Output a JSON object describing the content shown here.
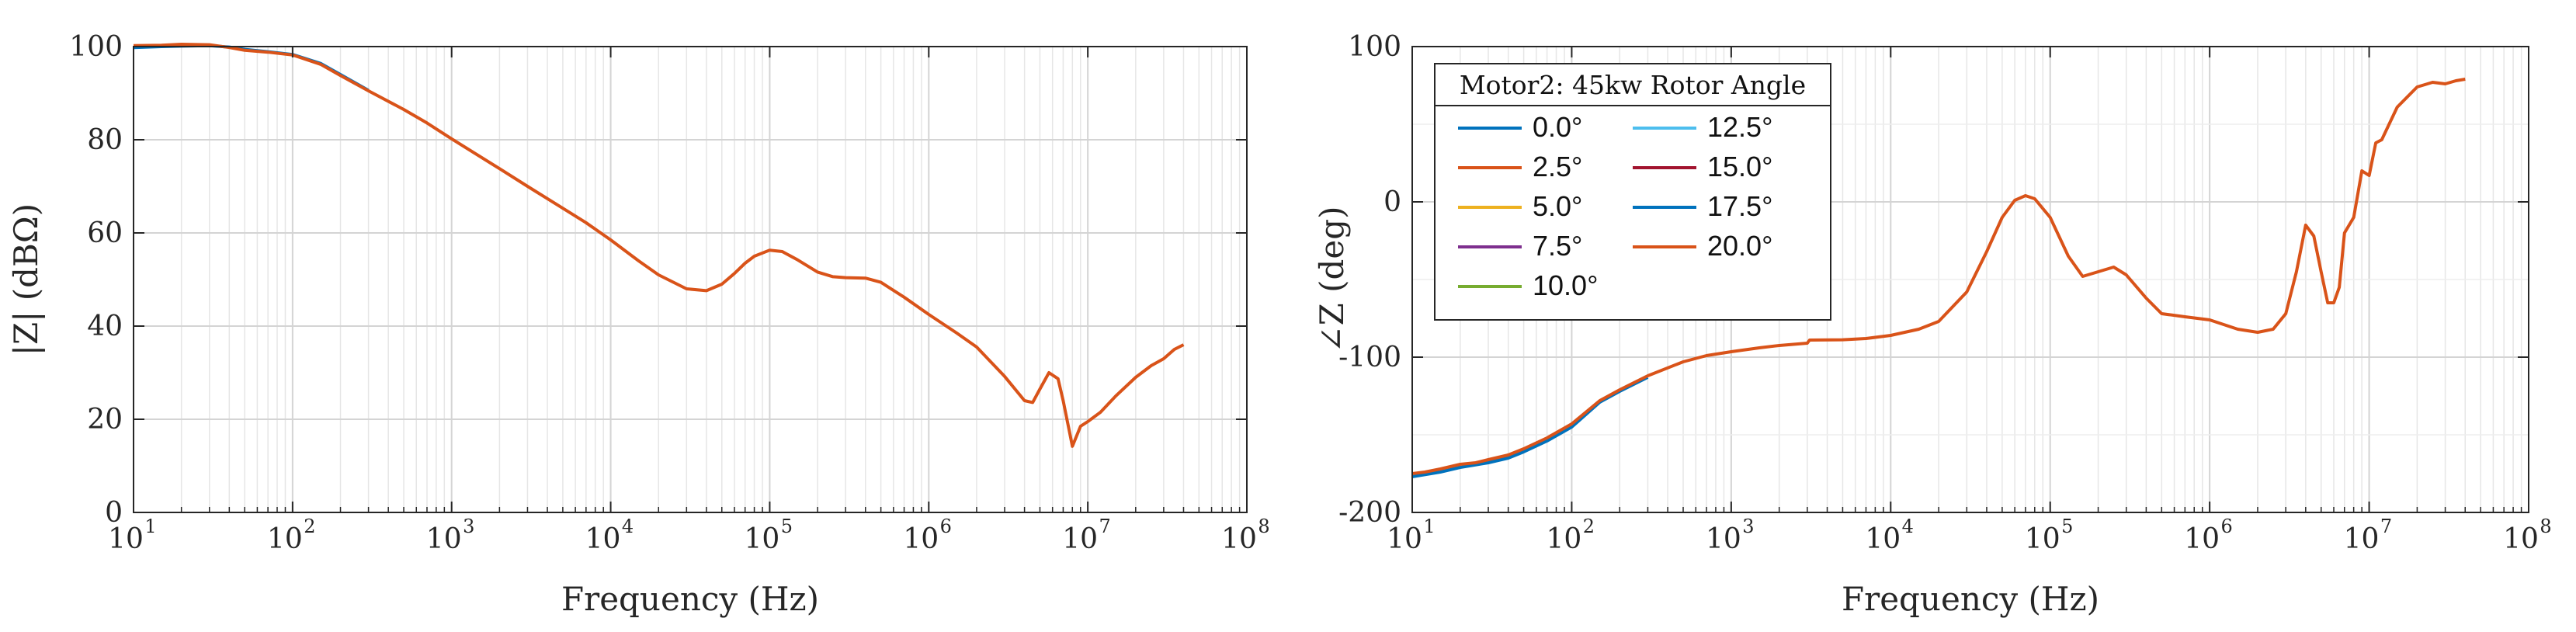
{
  "chart_data": [
    {
      "type": "line",
      "title": "",
      "xlabel": "Frequency (Hz)",
      "ylabel": "|Z| (dBΩ)",
      "xscale": "log",
      "xlim": [
        10,
        100000000
      ],
      "ylim": [
        0,
        100
      ],
      "grid": true,
      "x_tick_labels": [
        {
          "base": "10",
          "exp": "1"
        },
        {
          "base": "10",
          "exp": "2"
        },
        {
          "base": "10",
          "exp": "3"
        },
        {
          "base": "10",
          "exp": "4"
        },
        {
          "base": "10",
          "exp": "5"
        },
        {
          "base": "10",
          "exp": "6"
        },
        {
          "base": "10",
          "exp": "7"
        },
        {
          "base": "10",
          "exp": "8"
        }
      ],
      "y_ticks": [
        0,
        20,
        40,
        60,
        80,
        100
      ],
      "y_tick_labels": [
        "0",
        "20",
        "40",
        "60",
        "80",
        "100"
      ],
      "series": [
        {
          "name": "20.0°",
          "color": "#D95319",
          "x": [
            10,
            15,
            20,
            30,
            40,
            50,
            70,
            100,
            150,
            200,
            300,
            500,
            700,
            1000,
            2000,
            3000,
            5000,
            7000,
            10000,
            15000,
            20000,
            30000,
            40000,
            50000,
            60000,
            70000,
            80000,
            100000,
            120000,
            150000,
            200000,
            250000,
            300000,
            400000,
            500000,
            700000,
            1000000,
            1500000,
            2000000,
            3000000,
            4000000,
            4500000,
            5000000,
            5700000,
            6500000,
            7000000,
            8000000,
            9000000,
            10000000,
            12000000,
            15000000,
            20000000,
            25000000,
            30000000,
            35000000,
            40000000
          ],
          "y": [
            100.2,
            100.3,
            100.5,
            100.4,
            99.8,
            99.2,
            98.8,
            98.2,
            96.2,
            93.8,
            90.5,
            86.5,
            83.6,
            80.2,
            73.8,
            70,
            65.3,
            62.2,
            58.5,
            54,
            51,
            48,
            47.6,
            49,
            51.3,
            53.5,
            55,
            56.3,
            56,
            54.2,
            51.6,
            50.6,
            50.4,
            50.3,
            49.4,
            46.2,
            42.5,
            38.5,
            35.5,
            29.2,
            24,
            23.6,
            26.5,
            30,
            28.7,
            24,
            14.2,
            18.5,
            19.5,
            21.5,
            25,
            29,
            31.5,
            33,
            35,
            36
          ]
        },
        {
          "name": "0.0°",
          "color": "#0072BD",
          "x": [
            10,
            15,
            20,
            30,
            40,
            50,
            70,
            100,
            150,
            200,
            300
          ],
          "y": [
            99.8,
            100,
            100.1,
            100.2,
            99.9,
            99.4,
            98.9,
            98.3,
            96.4,
            94,
            90.6
          ]
        }
      ]
    },
    {
      "type": "line",
      "title": "",
      "xlabel": "Frequency (Hz)",
      "ylabel": "∠Z (deg)",
      "xscale": "log",
      "xlim": [
        10,
        100000000
      ],
      "ylim": [
        -200,
        100
      ],
      "grid": true,
      "x_tick_labels": [
        {
          "base": "10",
          "exp": "1"
        },
        {
          "base": "10",
          "exp": "2"
        },
        {
          "base": "10",
          "exp": "3"
        },
        {
          "base": "10",
          "exp": "4"
        },
        {
          "base": "10",
          "exp": "5"
        },
        {
          "base": "10",
          "exp": "6"
        },
        {
          "base": "10",
          "exp": "7"
        },
        {
          "base": "10",
          "exp": "8"
        }
      ],
      "y_ticks": [
        -200,
        -100,
        0,
        100
      ],
      "y_tick_labels": [
        "-200",
        "-100",
        "0",
        "100"
      ],
      "legend": {
        "title": "Motor2: 45kw Rotor Angle",
        "placement": "top-left",
        "entries": [
          {
            "label": "0.0°",
            "color": "#0072BD"
          },
          {
            "label": "2.5°",
            "color": "#D95319"
          },
          {
            "label": "5.0°",
            "color": "#EDB120"
          },
          {
            "label": "7.5°",
            "color": "#7E2F8E"
          },
          {
            "label": "10.0°",
            "color": "#77AC30"
          },
          {
            "label": "12.5°",
            "color": "#4DBEEE"
          },
          {
            "label": "15.0°",
            "color": "#A2142F"
          },
          {
            "label": "17.5°",
            "color": "#0072BD"
          },
          {
            "label": "20.0°",
            "color": "#D95319"
          }
        ]
      },
      "series": [
        {
          "name": "20.0°",
          "color": "#D95319",
          "x": [
            10,
            12,
            15,
            20,
            25,
            30,
            40,
            50,
            70,
            100,
            150,
            200,
            300,
            500,
            700,
            1000,
            1500,
            2000,
            3000,
            3100,
            5000,
            7000,
            10000,
            15000,
            20000,
            30000,
            40000,
            50000,
            60000,
            70000,
            80000,
            100000,
            130000,
            160000,
            200000,
            250000,
            300000,
            400000,
            500000,
            700000,
            1000000,
            1500000,
            2000000,
            2500000,
            3000000,
            3500000,
            4000000,
            4500000,
            5000000,
            5500000,
            6000000,
            6500000,
            7000000,
            8000000,
            9000000,
            10000000,
            11000000,
            12000000,
            15000000,
            20000000,
            25000000,
            30000000,
            35000000,
            40000000
          ],
          "y": [
            -175,
            -174,
            -172,
            -169,
            -168,
            -166,
            -163,
            -159,
            -152,
            -143,
            -128,
            -121,
            -112,
            -103,
            -99,
            -96.5,
            -94,
            -92.5,
            -91,
            -89,
            -88.8,
            -88,
            -86,
            -82,
            -77,
            -58,
            -32,
            -10,
            1,
            4,
            2,
            -10,
            -35,
            -48,
            -45,
            -42,
            -47,
            -62,
            -72,
            -74,
            -76,
            -82,
            -84,
            -82,
            -72,
            -45,
            -15,
            -22,
            -45,
            -65,
            -65,
            -55,
            -20,
            -10,
            20,
            17,
            38,
            40,
            61,
            74,
            77,
            76,
            78,
            79
          ]
        },
        {
          "name": "0.0°",
          "color": "#0072BD",
          "x": [
            10,
            15,
            20,
            30,
            40,
            50,
            70,
            100,
            150,
            200,
            300
          ],
          "y": [
            -177,
            -174,
            -171,
            -168,
            -165,
            -161,
            -154,
            -145,
            -129,
            -122,
            -113
          ]
        },
        {
          "name": "5.0°",
          "color": "#EDB120",
          "x": [
            30,
            40,
            50,
            70,
            100
          ],
          "y": [
            -168,
            -163,
            -160,
            -153,
            -144
          ]
        }
      ]
    }
  ]
}
